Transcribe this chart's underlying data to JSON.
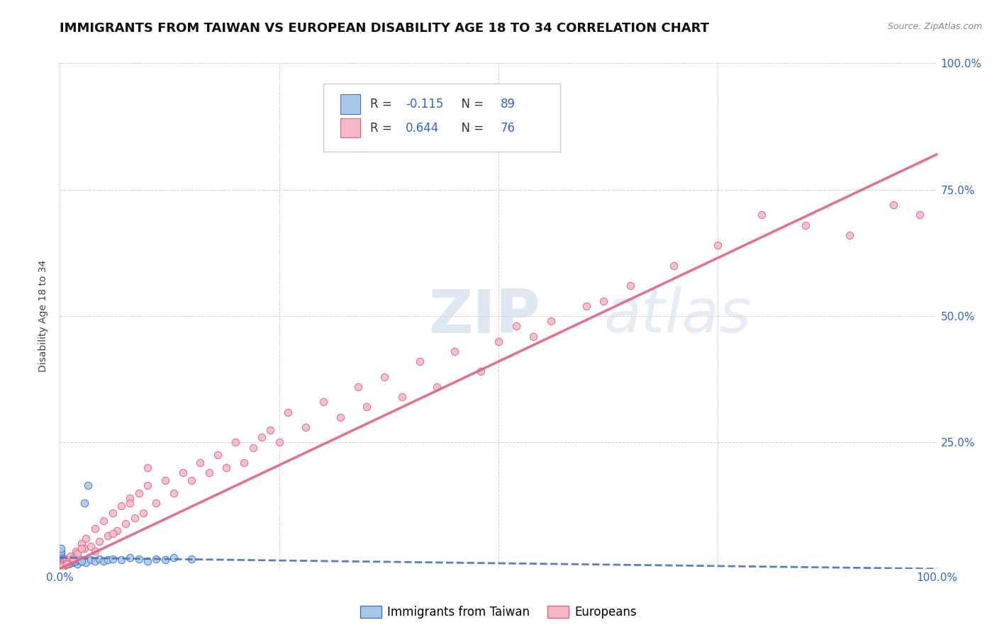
{
  "title": "IMMIGRANTS FROM TAIWAN VS EUROPEAN DISABILITY AGE 18 TO 34 CORRELATION CHART",
  "source": "Source: ZipAtlas.com",
  "ylabel": "Disability Age 18 to 34",
  "xlim": [
    0,
    1.0
  ],
  "ylim": [
    0,
    1.0
  ],
  "xtick_labels": [
    "0.0%",
    "",
    "",
    "",
    "100.0%"
  ],
  "xtick_vals": [
    0.0,
    0.25,
    0.5,
    0.75,
    1.0
  ],
  "ytick_labels": [
    "",
    "25.0%",
    "50.0%",
    "75.0%",
    "100.0%"
  ],
  "ytick_vals": [
    0.0,
    0.25,
    0.5,
    0.75,
    1.0
  ],
  "taiwan_color": "#a8c8e8",
  "taiwan_edge_color": "#4472c4",
  "european_color": "#f4b8c8",
  "european_edge_color": "#e06080",
  "taiwan_R": -0.115,
  "taiwan_N": 89,
  "european_R": 0.644,
  "european_N": 76,
  "taiwan_line_color": "#4472c4",
  "european_line_color": "#e06080",
  "watermark_zip": "ZIP",
  "watermark_atlas": "atlas",
  "legend_label_taiwan": "Immigrants from Taiwan",
  "legend_label_european": "Europeans",
  "title_fontsize": 13,
  "axis_label_fontsize": 10,
  "tick_fontsize": 11,
  "taiwan_scatter_x": [
    0.001,
    0.002,
    0.001,
    0.003,
    0.002,
    0.001,
    0.003,
    0.002,
    0.004,
    0.001,
    0.002,
    0.003,
    0.001,
    0.002,
    0.001,
    0.003,
    0.002,
    0.001,
    0.004,
    0.002,
    0.001,
    0.003,
    0.002,
    0.001,
    0.003,
    0.002,
    0.001,
    0.002,
    0.001,
    0.003,
    0.005,
    0.006,
    0.007,
    0.008,
    0.01,
    0.012,
    0.015,
    0.018,
    0.02,
    0.025,
    0.03,
    0.035,
    0.04,
    0.045,
    0.05,
    0.055,
    0.06,
    0.07,
    0.08,
    0.09,
    0.1,
    0.11,
    0.12,
    0.13,
    0.15,
    0.001,
    0.001,
    0.001,
    0.001,
    0.001,
    0.002,
    0.002,
    0.002,
    0.002,
    0.003,
    0.003,
    0.003,
    0.004,
    0.004,
    0.005,
    0.005,
    0.006,
    0.006,
    0.007,
    0.008,
    0.009,
    0.01,
    0.011,
    0.012,
    0.013,
    0.014,
    0.015,
    0.016,
    0.018,
    0.02,
    0.022,
    0.025,
    0.028,
    0.032
  ],
  "taiwan_scatter_y": [
    0.005,
    0.008,
    0.01,
    0.005,
    0.012,
    0.003,
    0.007,
    0.01,
    0.005,
    0.008,
    0.012,
    0.006,
    0.015,
    0.004,
    0.018,
    0.006,
    0.01,
    0.02,
    0.008,
    0.015,
    0.025,
    0.005,
    0.012,
    0.03,
    0.004,
    0.018,
    0.035,
    0.008,
    0.04,
    0.006,
    0.01,
    0.008,
    0.015,
    0.012,
    0.01,
    0.018,
    0.012,
    0.015,
    0.01,
    0.015,
    0.012,
    0.018,
    0.015,
    0.02,
    0.015,
    0.018,
    0.02,
    0.018,
    0.022,
    0.02,
    0.015,
    0.02,
    0.018,
    0.022,
    0.02,
    0.003,
    0.005,
    0.006,
    0.008,
    0.004,
    0.006,
    0.008,
    0.01,
    0.005,
    0.012,
    0.006,
    0.015,
    0.008,
    0.018,
    0.01,
    0.02,
    0.008,
    0.015,
    0.012,
    0.01,
    0.015,
    0.012,
    0.018,
    0.015,
    0.012,
    0.018,
    0.015,
    0.02,
    0.015,
    0.018,
    0.02,
    0.015,
    0.13,
    0.165
  ],
  "european_scatter_x": [
    0.002,
    0.003,
    0.005,
    0.006,
    0.008,
    0.01,
    0.012,
    0.015,
    0.018,
    0.02,
    0.025,
    0.028,
    0.03,
    0.035,
    0.04,
    0.045,
    0.05,
    0.055,
    0.06,
    0.065,
    0.07,
    0.075,
    0.08,
    0.085,
    0.09,
    0.095,
    0.1,
    0.11,
    0.12,
    0.13,
    0.14,
    0.15,
    0.16,
    0.17,
    0.18,
    0.19,
    0.2,
    0.21,
    0.22,
    0.23,
    0.24,
    0.25,
    0.26,
    0.28,
    0.3,
    0.32,
    0.34,
    0.35,
    0.37,
    0.39,
    0.41,
    0.43,
    0.45,
    0.48,
    0.5,
    0.52,
    0.54,
    0.56,
    0.6,
    0.62,
    0.65,
    0.7,
    0.75,
    0.8,
    0.85,
    0.9,
    0.95,
    0.98,
    0.003,
    0.008,
    0.015,
    0.025,
    0.04,
    0.06,
    0.08,
    0.1
  ],
  "european_scatter_y": [
    0.005,
    0.01,
    0.015,
    0.01,
    0.02,
    0.015,
    0.025,
    0.02,
    0.035,
    0.03,
    0.05,
    0.04,
    0.06,
    0.045,
    0.08,
    0.055,
    0.095,
    0.065,
    0.11,
    0.075,
    0.125,
    0.09,
    0.14,
    0.1,
    0.15,
    0.11,
    0.165,
    0.13,
    0.175,
    0.15,
    0.19,
    0.175,
    0.21,
    0.19,
    0.225,
    0.2,
    0.25,
    0.21,
    0.24,
    0.26,
    0.275,
    0.25,
    0.31,
    0.28,
    0.33,
    0.3,
    0.36,
    0.32,
    0.38,
    0.34,
    0.41,
    0.36,
    0.43,
    0.39,
    0.45,
    0.48,
    0.46,
    0.49,
    0.52,
    0.53,
    0.56,
    0.6,
    0.64,
    0.7,
    0.68,
    0.66,
    0.72,
    0.7,
    0.005,
    0.01,
    0.02,
    0.04,
    0.035,
    0.07,
    0.13,
    0.2
  ],
  "eu_trend_x0": 0.0,
  "eu_trend_y0": 0.0,
  "eu_trend_x1": 1.0,
  "eu_trend_y1": 0.82,
  "tw_trend_x0": 0.0,
  "tw_trend_y0": 0.022,
  "tw_trend_x1": 1.0,
  "tw_trend_y1": 0.0
}
